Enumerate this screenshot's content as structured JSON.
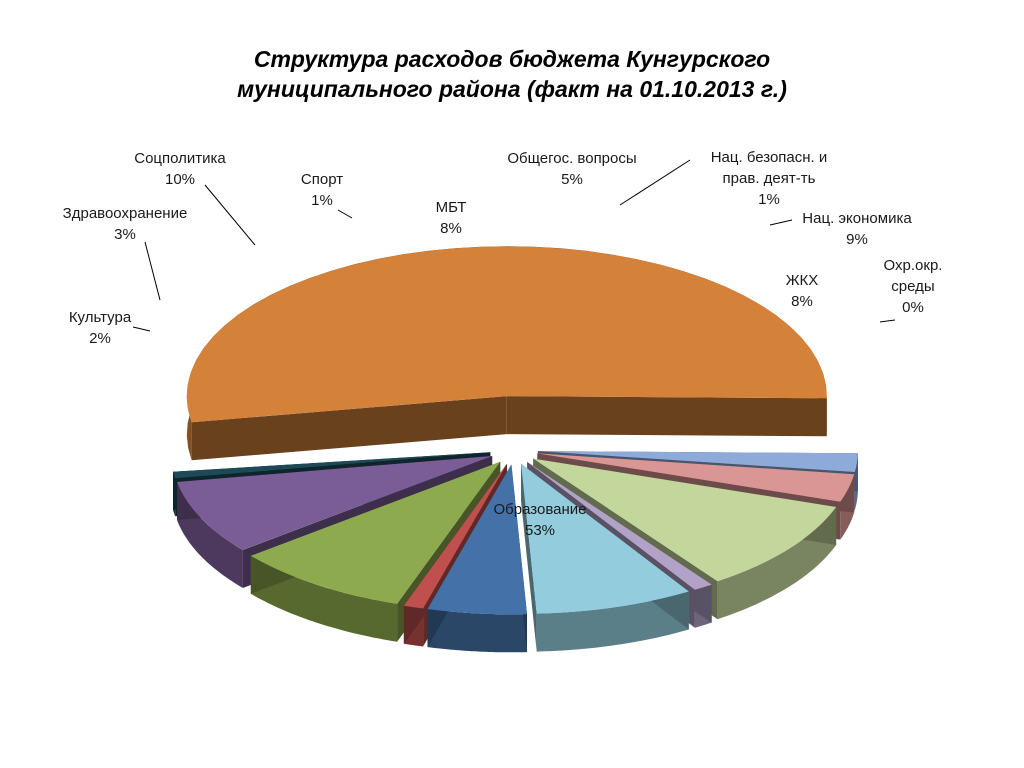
{
  "chart_data": {
    "type": "pie",
    "title_lines": [
      "Структура расходов бюджета Кунгурского",
      "муниципального района (факт на 01.10.2013 г.)"
    ],
    "slices": [
      {
        "name": "Образование",
        "lines": [
          "Образование"
        ],
        "value": 53,
        "label": "53%",
        "color": "#d4813a"
      },
      {
        "name": "Культура",
        "lines": [
          "Культура"
        ],
        "value": 2,
        "label": "2%",
        "color": "#8eaad9"
      },
      {
        "name": "Здравоохранение",
        "lines": [
          "Здравоохранение"
        ],
        "value": 3,
        "label": "3%",
        "color": "#d99694"
      },
      {
        "name": "Соцполитика",
        "lines": [
          "Соцполитика"
        ],
        "value": 10,
        "label": "10%",
        "color": "#c3d69b"
      },
      {
        "name": "Спорт",
        "lines": [
          "Спорт"
        ],
        "value": 1,
        "label": "1%",
        "color": "#b2a2c7"
      },
      {
        "name": "МБТ",
        "lines": [
          "МБТ"
        ],
        "value": 8,
        "label": "8%",
        "color": "#93cddd"
      },
      {
        "name": "Общегос. вопросы",
        "lines": [
          "Общегос. вопросы"
        ],
        "value": 5,
        "label": "5%",
        "color": "#4472a8"
      },
      {
        "name": "Нац. безопасн. и прав. деят-ть",
        "lines": [
          "Нац. безопасн. и",
          "прав. деят-ть"
        ],
        "value": 1,
        "label": "1%",
        "color": "#c0504d"
      },
      {
        "name": "Нац. экономика",
        "lines": [
          "Нац. экономика"
        ],
        "value": 9,
        "label": "9%",
        "color": "#8eaa4e"
      },
      {
        "name": "ЖКХ",
        "lines": [
          "ЖКХ"
        ],
        "value": 8,
        "label": "8%",
        "color": "#7a5c96"
      },
      {
        "name": "Охр.окр. среды",
        "lines": [
          "Охр.окр.",
          "среды"
        ],
        "value": 0,
        "label": "0%",
        "color": "#1e4a57"
      }
    ]
  }
}
